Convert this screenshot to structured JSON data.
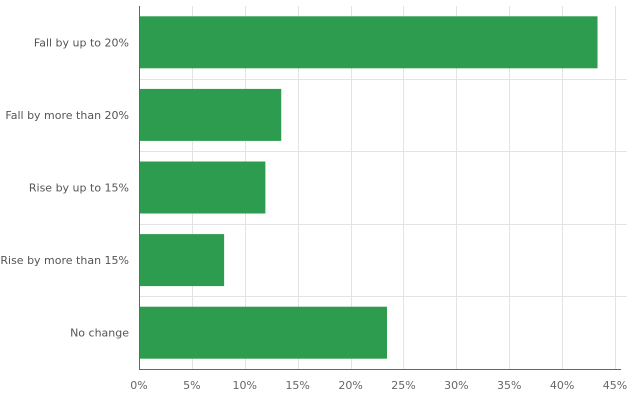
{
  "chart_data": {
    "type": "bar",
    "orientation": "horizontal",
    "title": "",
    "xlabel": "",
    "ylabel": "",
    "categories": [
      "Fall by up to 20%",
      "Fall by more than 20%",
      "Rise by up to 15%",
      "Rise by more than 15%",
      "No change"
    ],
    "values": [
      43.3,
      13.4,
      11.9,
      8.0,
      23.4
    ],
    "xlim": [
      0,
      45
    ],
    "x_ticks": [
      0,
      5,
      10,
      15,
      20,
      25,
      30,
      35,
      40,
      45
    ],
    "tick_format": "{v}%",
    "grid": true,
    "legend": "none",
    "bar_color": "#2e9c4f"
  }
}
